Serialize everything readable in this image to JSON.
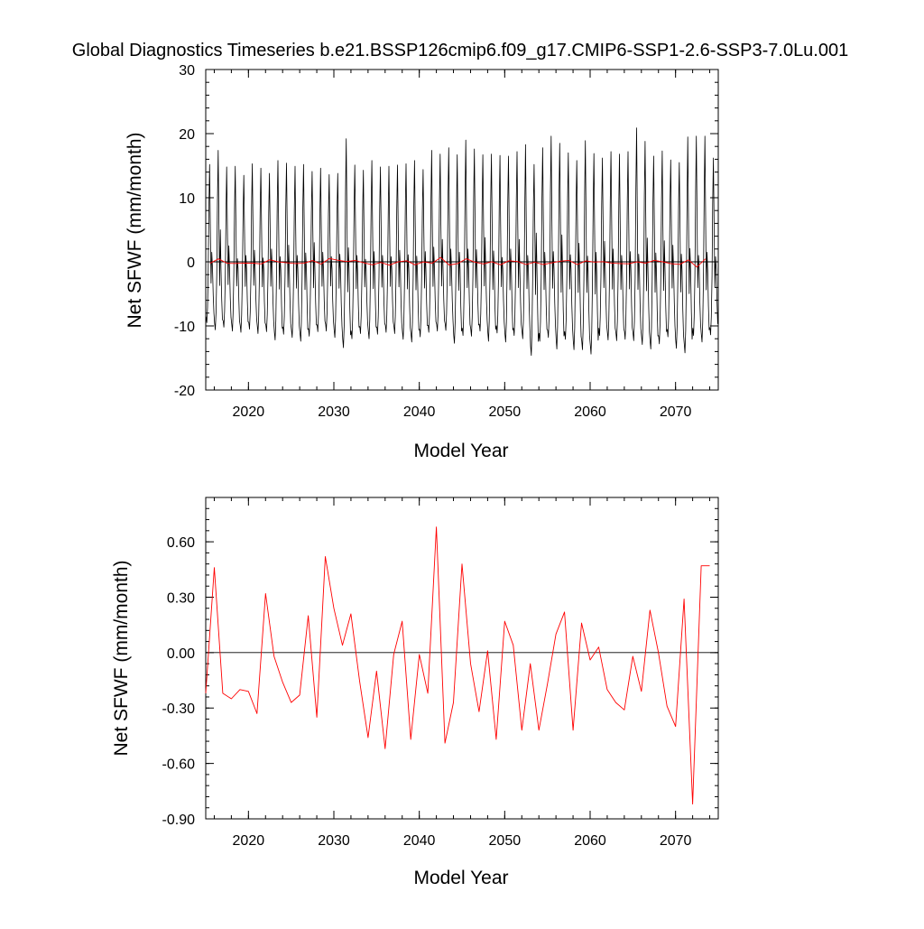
{
  "title": "Global Diagnostics Timeseries b.e21.BSSP126cmip6.f09_g17.CMIP6-SSP1-2.6-SSP3-7.0Lu.001",
  "colors": {
    "monthly": "#000000",
    "annual": "#ff0000",
    "zero_line": "#000000"
  },
  "chart_data": [
    {
      "type": "line",
      "xlabel": "Model Year",
      "ylabel": "Net SFWF (mm/month)",
      "xlim": [
        2015,
        2075
      ],
      "ylim": [
        -20,
        30
      ],
      "x_ticks": [
        2020,
        2030,
        2040,
        2050,
        2060,
        2070
      ],
      "x_tick_labels": [
        "2020",
        "2030",
        "2040",
        "2050",
        "2060",
        "2070"
      ],
      "y_ticks": [
        -20,
        -10,
        0,
        10,
        20,
        30
      ],
      "y_tick_labels": [
        "-20",
        "-10",
        "0",
        "10",
        "20",
        "30"
      ],
      "grid": false,
      "zero_line": true,
      "series": [
        {
          "color": "#000000",
          "cycle": "monthly",
          "x_start": 2015.04,
          "x_step": 0.0833,
          "annual_peaks": [
            15.2,
            17.4,
            14.8,
            14.9,
            13.5,
            15.3,
            14.6,
            13.8,
            15.8,
            15.4,
            14.9,
            15.2,
            14.1,
            14.6,
            13.6,
            13.8,
            19.2,
            15.1,
            14.3,
            15.8,
            14.8,
            14.9,
            15.1,
            15.3,
            15.8,
            14.4,
            17.4,
            16.8,
            17.8,
            16.7,
            19.0,
            17.6,
            16.7,
            16.8,
            16.6,
            16.5,
            17.2,
            18.3,
            15.2,
            17.8,
            19.6,
            18.5,
            17.0,
            15.8,
            18.9,
            16.9,
            16.2,
            17.2,
            16.8,
            17.2,
            20.9,
            18.8,
            16.5,
            17.3,
            15.9,
            15.5,
            19.5,
            19.6,
            19.6,
            16.2
          ],
          "annual_troughs": [
            -9.5,
            -10.6,
            -10.2,
            -10.8,
            -11.0,
            -10.5,
            -11.2,
            -10.9,
            -12.2,
            -11.3,
            -11.8,
            -12.4,
            -11.6,
            -10.9,
            -10.8,
            -11.8,
            -13.4,
            -12.0,
            -11.2,
            -12.0,
            -11.3,
            -11.0,
            -11.2,
            -12.1,
            -12.5,
            -11.7,
            -11.0,
            -10.8,
            -10.7,
            -12.7,
            -11.5,
            -11.6,
            -10.8,
            -12.4,
            -11.1,
            -12.5,
            -11.5,
            -12.0,
            -14.6,
            -12.4,
            -11.8,
            -13.6,
            -12.1,
            -13.7,
            -13.7,
            -14.4,
            -11.5,
            -12.2,
            -12.3,
            -12.1,
            -12.3,
            -12.9,
            -13.6,
            -12.8,
            -11.7,
            -13.5,
            -14.2,
            -11.5,
            -12.5,
            -11.4
          ],
          "mid_year_bumps": [
            1.5,
            5.0,
            2.5,
            0.5,
            1.0,
            1.8,
            0.6,
            2.0,
            0.8,
            2.6,
            1.0,
            1.4,
            3.0,
            1.5,
            0.8,
            1.2,
            2.2,
            1.0,
            0.4,
            1.6,
            1.0,
            0.8,
            1.8,
            1.1,
            0.9,
            1.6,
            2.3,
            3.5,
            2.0,
            1.5,
            2.0,
            1.9,
            3.8,
            1.7,
            0.7,
            2.0,
            3.5,
            1.0,
            4.5,
            1.5,
            1.6,
            4.2,
            1.1,
            2.9,
            0.9,
            1.5,
            3.2,
            2.0,
            1.0,
            1.6,
            1.2,
            3.7,
            1.4,
            3.3,
            2.6,
            1.2,
            2.1,
            1.0,
            1.5,
            0.8
          ]
        },
        {
          "color": "#ff0000",
          "cycle": "annual",
          "x": [
            2015.5,
            2016.5,
            2017.5,
            2018.5,
            2019.5,
            2020.5,
            2021.5,
            2022.5,
            2023.5,
            2024.5,
            2025.5,
            2026.5,
            2027.5,
            2028.5,
            2029.5,
            2030.5,
            2031.5,
            2032.5,
            2033.5,
            2034.5,
            2035.5,
            2036.5,
            2037.5,
            2038.5,
            2039.5,
            2040.5,
            2041.5,
            2042.5,
            2043.5,
            2044.5,
            2045.5,
            2046.5,
            2047.5,
            2048.5,
            2049.5,
            2050.5,
            2051.5,
            2052.5,
            2053.5,
            2054.5,
            2055.5,
            2056.5,
            2057.5,
            2058.5,
            2059.5,
            2060.5,
            2061.5,
            2062.5,
            2063.5,
            2064.5,
            2065.5,
            2066.5,
            2067.5,
            2068.5,
            2069.5,
            2070.5,
            2071.5,
            2072.5,
            2073.5
          ],
          "y": [
            -0.22,
            0.46,
            -0.22,
            -0.25,
            -0.2,
            -0.21,
            -0.33,
            0.32,
            -0.02,
            -0.16,
            -0.27,
            -0.23,
            0.2,
            -0.35,
            0.52,
            0.24,
            0.04,
            0.21,
            -0.15,
            -0.46,
            -0.1,
            -0.52,
            -0.01,
            0.17,
            -0.47,
            -0.01,
            -0.22,
            0.68,
            -0.49,
            -0.27,
            0.48,
            -0.06,
            -0.32,
            0.01,
            -0.47,
            0.17,
            0.04,
            -0.42,
            -0.06,
            -0.42,
            -0.17,
            0.1,
            0.22,
            -0.42,
            0.16,
            -0.04,
            0.03,
            -0.2,
            -0.27,
            -0.31,
            -0.02,
            -0.21,
            0.23,
            0.0,
            -0.29,
            -0.4,
            0.29,
            -0.82,
            0.47
          ]
        }
      ]
    },
    {
      "type": "line",
      "xlabel": "Model Year",
      "ylabel": "Net SFWF (mm/month)",
      "xlim": [
        2015,
        2075
      ],
      "ylim": [
        -0.9,
        0.84
      ],
      "x_ticks": [
        2020,
        2030,
        2040,
        2050,
        2060,
        2070
      ],
      "x_tick_labels": [
        "2020",
        "2030",
        "2040",
        "2050",
        "2060",
        "2070"
      ],
      "y_ticks": [
        -0.9,
        -0.6,
        -0.3,
        0.0,
        0.3,
        0.6
      ],
      "y_tick_labels": [
        "-0.90",
        "-0.60",
        "-0.30",
        "0.00",
        "0.30",
        "0.60"
      ],
      "grid": false,
      "zero_line": true,
      "series": [
        {
          "color": "#ff0000",
          "x": [
            2015.0,
            2016.0,
            2017.0,
            2018.0,
            2019.0,
            2020.0,
            2021.0,
            2022.0,
            2023.0,
            2024.0,
            2025.0,
            2026.0,
            2027.0,
            2028.0,
            2029.0,
            2030.0,
            2031.0,
            2032.0,
            2033.0,
            2034.0,
            2035.0,
            2036.0,
            2037.0,
            2038.0,
            2039.0,
            2040.0,
            2041.0,
            2042.0,
            2043.0,
            2044.0,
            2045.0,
            2046.0,
            2047.0,
            2048.0,
            2049.0,
            2050.0,
            2051.0,
            2052.0,
            2053.0,
            2054.0,
            2055.0,
            2056.0,
            2057.0,
            2058.0,
            2059.0,
            2060.0,
            2061.0,
            2062.0,
            2063.0,
            2064.0,
            2065.0,
            2066.0,
            2067.0,
            2068.0,
            2069.0,
            2070.0,
            2071.0,
            2072.0,
            2073.0,
            2074.0
          ],
          "y": [
            -0.22,
            0.46,
            -0.22,
            -0.25,
            -0.2,
            -0.21,
            -0.33,
            0.32,
            -0.02,
            -0.16,
            -0.27,
            -0.23,
            0.2,
            -0.35,
            0.52,
            0.24,
            0.04,
            0.21,
            -0.15,
            -0.46,
            -0.1,
            -0.52,
            -0.01,
            0.17,
            -0.47,
            -0.01,
            -0.22,
            0.68,
            -0.49,
            -0.27,
            0.48,
            -0.06,
            -0.32,
            0.01,
            -0.47,
            0.17,
            0.04,
            -0.42,
            -0.06,
            -0.42,
            -0.17,
            0.1,
            0.22,
            -0.42,
            0.16,
            -0.04,
            0.03,
            -0.2,
            -0.27,
            -0.31,
            -0.02,
            -0.21,
            0.23,
            0.0,
            -0.29,
            -0.4,
            0.29,
            -0.82,
            0.47,
            0.47
          ]
        }
      ]
    }
  ]
}
